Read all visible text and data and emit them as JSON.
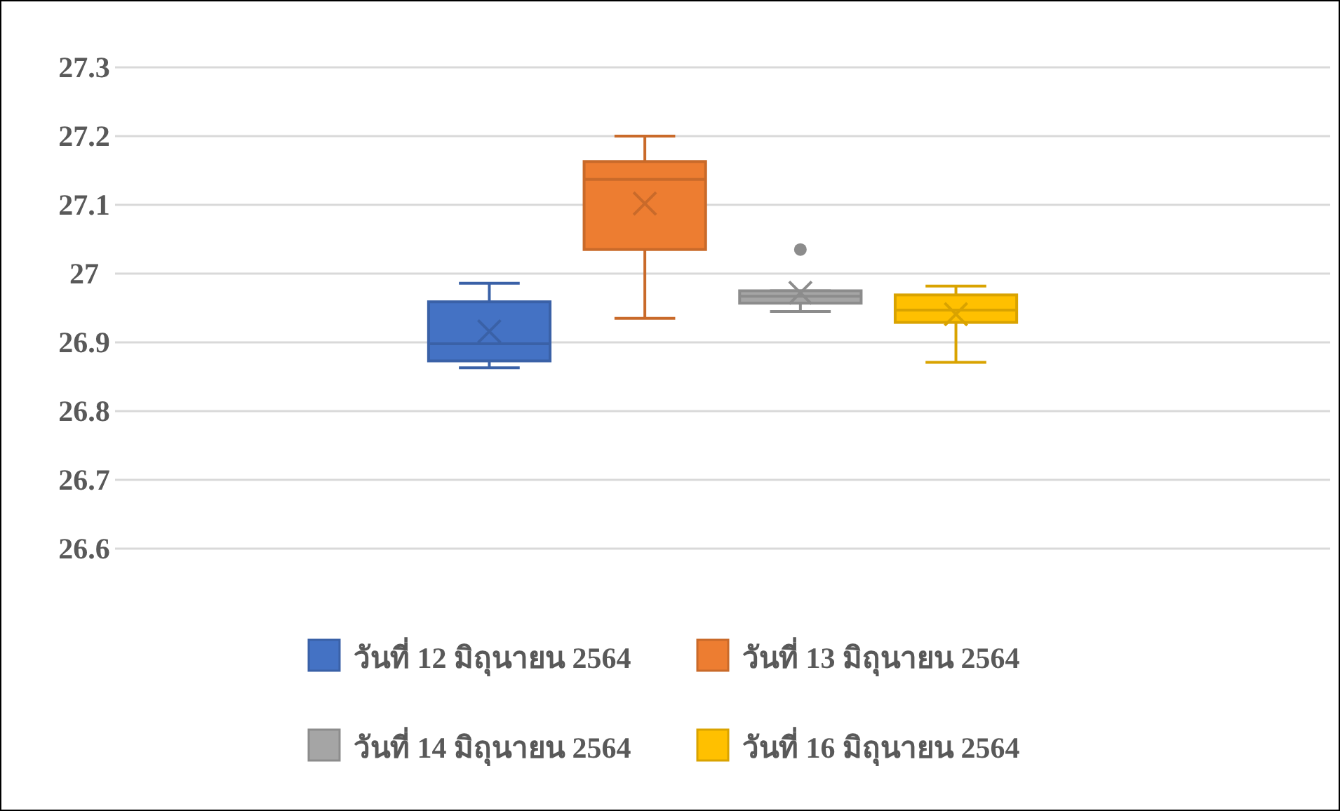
{
  "chart_data": {
    "type": "box",
    "categories": [
      null
    ],
    "ylim": [
      26.6,
      27.3
    ],
    "yticks": [
      26.6,
      26.7,
      26.8,
      26.9,
      27,
      27.1,
      27.2,
      27.3
    ],
    "grid": "y",
    "legend": "bottom",
    "tick_labels": "y",
    "series": [
      {
        "name": "วันที่ 12 มิถุนายน 2564",
        "color": "#4472c4",
        "boxes": [
          {
            "low": 26.863,
            "q1": 26.873,
            "median": 26.898,
            "q3": 26.959,
            "high": 26.986,
            "mean": 26.916
          }
        ]
      },
      {
        "name": "วันที่ 13 มิถุนายน 2564",
        "color": "#ed7d31",
        "boxes": [
          {
            "low": 26.935,
            "q1": 27.035,
            "median": 27.137,
            "q3": 27.163,
            "high": 27.2,
            "mean": 27.102
          }
        ]
      },
      {
        "name": "วันที่ 14 มิถุนายน 2564",
        "color": "#a5a5a5",
        "boxes": [
          {
            "low": 26.945,
            "q1": 26.957,
            "median": 26.967,
            "q3": 26.975,
            "high": 26.975,
            "mean": 26.972,
            "outliers": [
              27.035
            ]
          }
        ]
      },
      {
        "name": "วันที่ 16 มิถุนายน 2564",
        "color": "#ffc000",
        "boxes": [
          {
            "low": 26.871,
            "q1": 26.929,
            "median": 26.947,
            "q3": 26.969,
            "high": 26.982,
            "mean": 26.941
          }
        ]
      }
    ]
  }
}
